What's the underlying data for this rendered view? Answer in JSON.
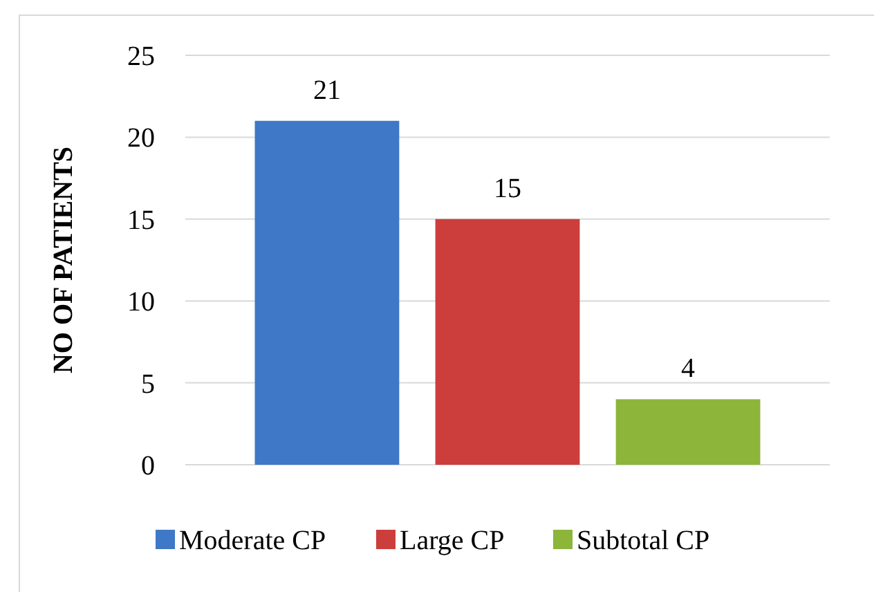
{
  "chart_data": {
    "type": "bar",
    "ylabel": "NO OF PATIENTS",
    "categories": [
      null
    ],
    "series": [
      {
        "name": "Moderate CP",
        "color": "#3f78c6",
        "values": [
          21
        ]
      },
      {
        "name": "Large CP",
        "color": "#cc3e3c",
        "values": [
          15
        ]
      },
      {
        "name": "Subtotal CP",
        "color": "#8cb53a",
        "values": [
          4
        ]
      }
    ],
    "ylim": [
      0,
      25
    ],
    "yticks": [
      0,
      5,
      10,
      15,
      20,
      25
    ],
    "grid": "y",
    "legend": "bottom",
    "data_labels": true
  }
}
